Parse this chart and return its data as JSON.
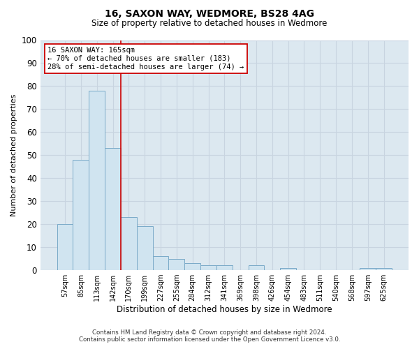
{
  "title": "16, SAXON WAY, WEDMORE, BS28 4AG",
  "subtitle": "Size of property relative to detached houses in Wedmore",
  "xlabel": "Distribution of detached houses by size in Wedmore",
  "ylabel": "Number of detached properties",
  "categories": [
    "57sqm",
    "85sqm",
    "113sqm",
    "142sqm",
    "170sqm",
    "199sqm",
    "227sqm",
    "255sqm",
    "284sqm",
    "312sqm",
    "341sqm",
    "369sqm",
    "398sqm",
    "426sqm",
    "454sqm",
    "483sqm",
    "511sqm",
    "540sqm",
    "568sqm",
    "597sqm",
    "625sqm"
  ],
  "values": [
    20,
    48,
    78,
    53,
    23,
    19,
    6,
    5,
    3,
    2,
    2,
    0,
    2,
    0,
    1,
    0,
    0,
    0,
    0,
    1,
    1
  ],
  "bar_color": "#d0e4f0",
  "bar_edge_color": "#7aaac8",
  "vline_color": "#cc0000",
  "vline_x_idx": 3.5,
  "annotation_text": "16 SAXON WAY: 165sqm\n← 70% of detached houses are smaller (183)\n28% of semi-detached houses are larger (74) →",
  "annotation_box_facecolor": "#ffffff",
  "annotation_box_edgecolor": "#cc0000",
  "ylim": [
    0,
    100
  ],
  "yticks": [
    0,
    10,
    20,
    30,
    40,
    50,
    60,
    70,
    80,
    90,
    100
  ],
  "grid_color": "#c8d4e0",
  "fig_bg_color": "#ffffff",
  "plot_bg_color": "#dce8f0",
  "footer_line1": "Contains HM Land Registry data © Crown copyright and database right 2024.",
  "footer_line2": "Contains public sector information licensed under the Open Government Licence v3.0."
}
